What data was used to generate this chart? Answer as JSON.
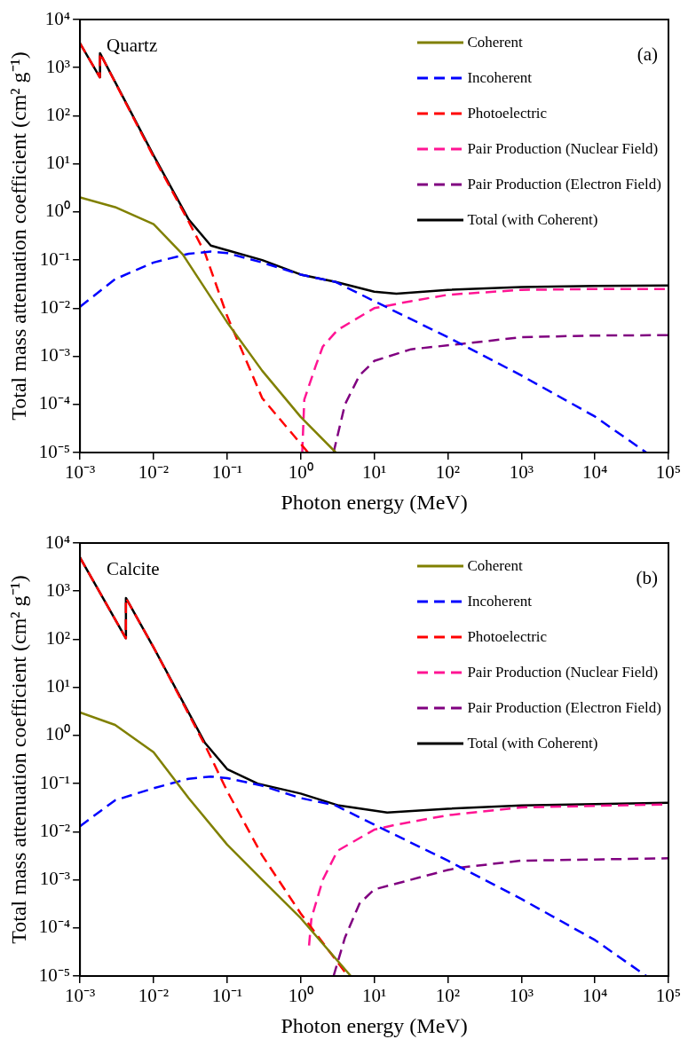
{
  "chart_data": [
    {
      "type": "line",
      "xlabel": "Photon energy (MeV)",
      "ylabel": "Total mass attenuation coefficient (cm² g⁻¹)",
      "annotations": [
        "Quartz",
        "(a)"
      ],
      "log": "xy",
      "grid": false,
      "legend": "top right",
      "marker": "none",
      "xlim": [
        0.001,
        100000
      ],
      "ylim": [
        1e-05,
        10000
      ],
      "xticks": [
        {
          "value": 0.001,
          "label": "10⁻³"
        },
        {
          "value": 0.01,
          "label": "10⁻²"
        },
        {
          "value": 0.1,
          "label": "10⁻¹"
        },
        {
          "value": 1,
          "label": "10⁰"
        },
        {
          "value": 10,
          "label": "10¹"
        },
        {
          "value": 100,
          "label": "10²"
        },
        {
          "value": 1000,
          "label": "10³"
        },
        {
          "value": 10000,
          "label": "10⁴"
        },
        {
          "value": 100000,
          "label": "10⁵"
        }
      ],
      "yticks": [
        {
          "value": 1e-05,
          "label": "10⁻⁵"
        },
        {
          "value": 0.0001,
          "label": "10⁻⁴"
        },
        {
          "value": 0.001,
          "label": "10⁻³"
        },
        {
          "value": 0.01,
          "label": "10⁻²"
        },
        {
          "value": 0.1,
          "label": "10⁻¹"
        },
        {
          "value": 1,
          "label": "10⁰"
        },
        {
          "value": 10,
          "label": "10¹"
        },
        {
          "value": 100,
          "label": "10²"
        },
        {
          "value": 1000,
          "label": "10³"
        },
        {
          "value": 10000,
          "label": "10⁴"
        }
      ],
      "series": [
        {
          "name": "Coherent",
          "color": "#808000",
          "line_style": "solid",
          "x": [
            0.001,
            0.003,
            0.01,
            0.025,
            0.1,
            0.3,
            1,
            3
          ],
          "values": [
            2.0,
            1.26,
            0.56,
            0.13,
            0.0051,
            0.0005,
            5.5e-05,
            1e-05
          ]
        },
        {
          "name": "Incoherent",
          "color": "#0000ff",
          "line_style": "dashed",
          "x": [
            0.001,
            0.003,
            0.01,
            0.03,
            0.06,
            0.1,
            0.3,
            1,
            3,
            10,
            100,
            1000,
            10000,
            50000
          ],
          "values": [
            0.0107,
            0.04,
            0.089,
            0.135,
            0.15,
            0.14,
            0.089,
            0.05,
            0.035,
            0.014,
            0.0025,
            0.0004,
            5.6e-05,
            1e-05
          ]
        },
        {
          "name": "Photoelectric",
          "color": "#ff0000",
          "line_style": "dashed",
          "x": [
            0.001,
            0.00186,
            0.00187,
            0.01,
            0.03,
            0.05,
            0.1,
            0.3,
            1.26
          ],
          "values": [
            3200,
            630,
            2000,
            14,
            0.63,
            0.14,
            0.0069,
            0.000135,
            1e-05
          ]
        },
        {
          "name": "Pair Production (Nuclear Field)",
          "color": "#ff1493",
          "line_style": "dashed",
          "x": [
            1.05,
            1.12,
            1.6,
            2,
            3.16,
            10,
            31.6,
            100,
            1000,
            10000,
            100000
          ],
          "values": [
            1e-05,
            0.000126,
            0.00063,
            0.0016,
            0.0035,
            0.01,
            0.014,
            0.019,
            0.024,
            0.025,
            0.025
          ]
        },
        {
          "name": "Pair Production (Electron Field)",
          "color": "#800080",
          "line_style": "dashed",
          "x": [
            2.8,
            4,
            6.3,
            10,
            31.6,
            150,
            1000,
            10000,
            100000
          ],
          "values": [
            1e-05,
            0.0001,
            0.0004,
            0.0008,
            0.0014,
            0.0018,
            0.0025,
            0.0027,
            0.00275
          ]
        },
        {
          "name": "Total (with Coherent)",
          "color": "#000000",
          "line_style": "solid",
          "x": [
            0.001,
            0.00186,
            0.00187,
            0.01,
            0.03,
            0.06,
            0.1,
            0.3,
            1,
            3,
            10,
            20,
            100,
            1000,
            10000,
            100000
          ],
          "values": [
            3200,
            630,
            2000,
            15,
            0.7,
            0.2,
            0.16,
            0.1,
            0.05,
            0.035,
            0.022,
            0.02,
            0.024,
            0.0275,
            0.029,
            0.0295
          ]
        }
      ]
    },
    {
      "type": "line",
      "xlabel": "Photon energy (MeV)",
      "ylabel": "Total mass attenuation coefficient (cm² g⁻¹)",
      "annotations": [
        "Calcite",
        "(b)"
      ],
      "log": "xy",
      "grid": false,
      "legend": "top right",
      "marker": "none",
      "xlim": [
        0.001,
        100000
      ],
      "ylim": [
        1e-05,
        10000
      ],
      "xticks": [
        {
          "value": 0.001,
          "label": "10⁻³"
        },
        {
          "value": 0.01,
          "label": "10⁻²"
        },
        {
          "value": 0.1,
          "label": "10⁻¹"
        },
        {
          "value": 1,
          "label": "10⁰"
        },
        {
          "value": 10,
          "label": "10¹"
        },
        {
          "value": 100,
          "label": "10²"
        },
        {
          "value": 1000,
          "label": "10³"
        },
        {
          "value": 10000,
          "label": "10⁴"
        },
        {
          "value": 100000,
          "label": "10⁵"
        }
      ],
      "yticks": [
        {
          "value": 1e-05,
          "label": "10⁻⁵"
        },
        {
          "value": 0.0001,
          "label": "10⁻⁴"
        },
        {
          "value": 0.001,
          "label": "10⁻³"
        },
        {
          "value": 0.01,
          "label": "10⁻²"
        },
        {
          "value": 0.1,
          "label": "10⁻¹"
        },
        {
          "value": 1,
          "label": "10⁰"
        },
        {
          "value": 10,
          "label": "10¹"
        },
        {
          "value": 100,
          "label": "10²"
        },
        {
          "value": 1000,
          "label": "10³"
        },
        {
          "value": 10000,
          "label": "10⁴"
        }
      ],
      "series": [
        {
          "name": "Coherent",
          "color": "#808000",
          "line_style": "solid",
          "x": [
            0.001,
            0.003,
            0.01,
            0.03,
            0.1,
            0.3,
            1,
            4.8
          ],
          "values": [
            3.0,
            1.66,
            0.45,
            0.05,
            0.0054,
            0.001,
            0.00016,
            1e-05
          ]
        },
        {
          "name": "Incoherent",
          "color": "#0000ff",
          "line_style": "dashed",
          "x": [
            0.001,
            0.003,
            0.01,
            0.03,
            0.06,
            0.1,
            0.3,
            1,
            3,
            10,
            100,
            1000,
            10000,
            50000
          ],
          "values": [
            0.013,
            0.045,
            0.08,
            0.126,
            0.14,
            0.13,
            0.09,
            0.05,
            0.035,
            0.014,
            0.0025,
            0.0004,
            5.6e-05,
            1e-05
          ]
        },
        {
          "name": "Photoelectric",
          "color": "#ff0000",
          "line_style": "dashed",
          "x": [
            0.001,
            0.0042,
            0.00421,
            0.01,
            0.05,
            0.1,
            0.3,
            1,
            4.4
          ],
          "values": [
            5000,
            105,
            720,
            68,
            0.63,
            0.07,
            0.0032,
            0.0002,
            1e-05
          ]
        },
        {
          "name": "Pair Production (Nuclear Field)",
          "color": "#ff1493",
          "line_style": "dashed",
          "x": [
            1.3,
            1.4,
            2,
            3.16,
            10,
            20,
            100,
            1000,
            100000
          ],
          "values": [
            4.3e-05,
            0.00016,
            0.001,
            0.004,
            0.011,
            0.014,
            0.022,
            0.032,
            0.037
          ]
        },
        {
          "name": "Pair Production (Electron Field)",
          "color": "#800080",
          "line_style": "dashed",
          "x": [
            2.8,
            4,
            6.3,
            10,
            100,
            150,
            1000,
            100000
          ],
          "values": [
            1e-05,
            6.3e-05,
            0.00032,
            0.00063,
            0.0016,
            0.0018,
            0.0025,
            0.0028
          ]
        },
        {
          "name": "Total (with Coherent)",
          "color": "#000000",
          "line_style": "solid",
          "x": [
            0.001,
            0.0042,
            0.00421,
            0.01,
            0.05,
            0.1,
            0.26,
            1,
            3.3,
            15,
            100,
            1000,
            100000
          ],
          "values": [
            5000,
            105,
            720,
            68,
            0.7,
            0.2,
            0.1,
            0.062,
            0.035,
            0.025,
            0.03,
            0.035,
            0.04
          ]
        }
      ]
    }
  ]
}
